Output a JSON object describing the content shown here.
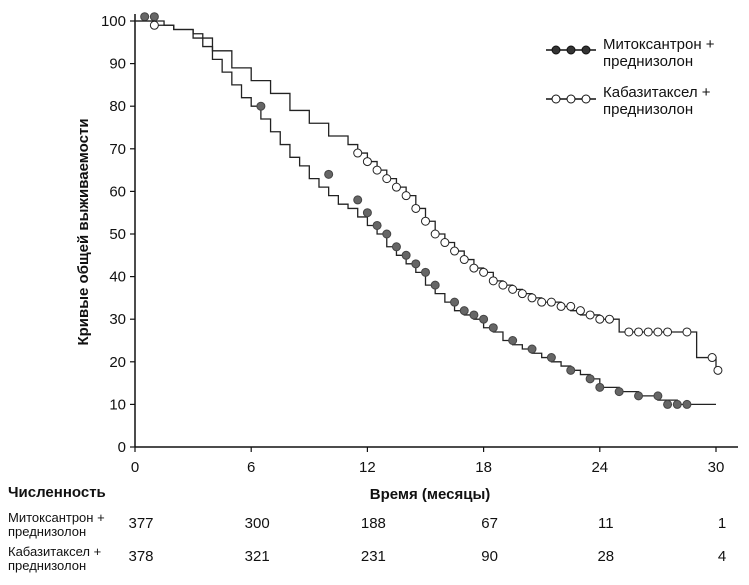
{
  "chart_data": {
    "type": "line",
    "subtype": "kaplan-meier",
    "title": "",
    "xlabel": "Время (месяцы)",
    "ylabel": "Кривые общей выживаемости",
    "xlim": [
      0,
      30
    ],
    "ylim": [
      0,
      100
    ],
    "xticks": [
      "0",
      "6",
      "12",
      "18",
      "24",
      "30"
    ],
    "yticks": [
      "0",
      "10",
      "20",
      "30",
      "40",
      "50",
      "60",
      "70",
      "80",
      "90",
      "100"
    ],
    "grid": false,
    "legend_position": "top-right",
    "series": [
      {
        "name": "Митоксантрон + преднизолон",
        "marker": "filled-circle",
        "color": "#555555",
        "x": [
          0.0,
          0.5,
          1.0,
          1.5,
          2.0,
          3.0,
          3.5,
          4.0,
          4.5,
          5.0,
          5.5,
          6.0,
          6.5,
          7.0,
          7.5,
          8.0,
          8.5,
          9.0,
          9.5,
          10.0,
          10.5,
          11.0,
          11.5,
          12.0,
          12.5,
          13.0,
          13.5,
          14.0,
          14.5,
          15.0,
          15.5,
          16.0,
          16.5,
          17.0,
          17.5,
          18.0,
          18.5,
          19.0,
          19.5,
          20.0,
          20.5,
          21.0,
          21.5,
          22.0,
          22.5,
          23.0,
          23.5,
          24.0,
          25.0,
          26.0,
          27.0,
          28.0,
          29.0,
          30.0
        ],
        "y": [
          100,
          100,
          100,
          99,
          98,
          97,
          94,
          91,
          88,
          85,
          82,
          80,
          77,
          74,
          71,
          68,
          66,
          63,
          61,
          59,
          57,
          56,
          54,
          52,
          50,
          47,
          45,
          43,
          41,
          38,
          36,
          34,
          32,
          31,
          30,
          28,
          27,
          25,
          24,
          23,
          22,
          21,
          20,
          19,
          18,
          17,
          16,
          14,
          13,
          12,
          11,
          10,
          10,
          10
        ],
        "censor_x": [
          0.5,
          1.0,
          6.5,
          10.0,
          11.5,
          12.0,
          12.5,
          13.0,
          13.5,
          14.0,
          14.5,
          15.0,
          15.5,
          16.5,
          17.0,
          17.5,
          18.0,
          18.5,
          19.5,
          20.5,
          21.5,
          22.5,
          23.5,
          24.0,
          25.0,
          26.0,
          27.0,
          27.5,
          28.0,
          28.5
        ],
        "censor_y": [
          101,
          101,
          80,
          64,
          58,
          55,
          52,
          50,
          47,
          45,
          43,
          41,
          38,
          34,
          32,
          31,
          30,
          28,
          25,
          23,
          21,
          18,
          16,
          14,
          13,
          12,
          12,
          10,
          10,
          10
        ]
      },
      {
        "name": "Кабазитаксел + преднизолон",
        "marker": "open-circle",
        "color": "#111111",
        "x": [
          0.0,
          0.5,
          1.0,
          2.0,
          3.0,
          4.0,
          5.0,
          6.0,
          7.0,
          8.0,
          9.0,
          10.0,
          11.0,
          11.5,
          12.0,
          12.5,
          13.0,
          13.5,
          14.0,
          14.5,
          15.0,
          15.5,
          16.0,
          16.5,
          17.0,
          17.5,
          18.0,
          18.5,
          19.0,
          19.5,
          20.0,
          20.5,
          21.0,
          21.5,
          22.0,
          22.5,
          23.0,
          23.5,
          24.0,
          24.5,
          25.0,
          26.0,
          27.0,
          28.0,
          29.0,
          29.5,
          30.0
        ],
        "y": [
          100,
          100,
          99,
          98,
          96,
          93,
          89,
          86,
          83,
          79,
          76,
          73,
          71,
          69,
          67,
          65,
          63,
          61,
          59,
          56,
          53,
          50,
          48,
          46,
          44,
          42,
          41,
          39,
          38,
          37,
          36,
          35,
          34,
          34,
          33,
          32,
          31,
          31,
          30,
          30,
          27,
          27,
          27,
          27,
          21,
          21,
          18
        ],
        "censor_x": [
          1.0,
          11.5,
          12.0,
          12.5,
          13.0,
          13.5,
          14.0,
          14.5,
          15.0,
          15.5,
          16.0,
          16.5,
          17.0,
          17.5,
          18.0,
          18.5,
          19.0,
          19.5,
          20.0,
          20.5,
          21.0,
          21.5,
          22.0,
          22.5,
          23.0,
          23.5,
          24.0,
          24.5,
          25.5,
          26.0,
          26.5,
          27.0,
          27.5,
          28.5,
          29.8,
          30.1
        ],
        "censor_y": [
          99,
          69,
          67,
          65,
          63,
          61,
          59,
          56,
          53,
          50,
          48,
          46,
          44,
          42,
          41,
          39,
          38,
          37,
          36,
          35,
          34,
          34,
          33,
          33,
          32,
          31,
          30,
          30,
          27,
          27,
          27,
          27,
          27,
          27,
          21,
          18
        ]
      }
    ],
    "risk_table": {
      "title": "Численность",
      "timepoints": [
        "0",
        "6",
        "12",
        "18",
        "24",
        "30"
      ],
      "rows": [
        {
          "label_line1": "Митоксантрон +",
          "label_line2": "преднизолон",
          "values": [
            "377",
            "300",
            "188",
            "67",
            "11",
            "1"
          ]
        },
        {
          "label_line1": "Кабазитаксел +",
          "label_line2": "преднизолон",
          "values": [
            "378",
            "321",
            "231",
            "90",
            "28",
            "4"
          ]
        }
      ]
    },
    "legend": [
      {
        "line1": "Митоксантрон +",
        "line2": "преднизолон"
      },
      {
        "line1": "Кабазитаксел +",
        "line2": "преднизолон"
      }
    ]
  }
}
